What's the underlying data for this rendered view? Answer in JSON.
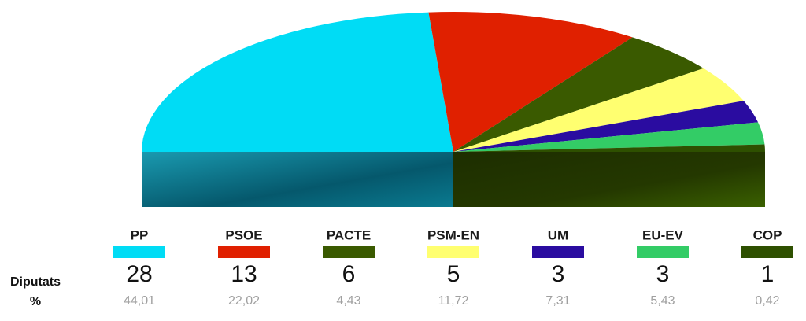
{
  "chart_data": {
    "type": "half-pie",
    "categories": [
      "PP",
      "PSOE",
      "PACTE",
      "PSM-EN",
      "UM",
      "EU-EV",
      "COP"
    ],
    "colors": [
      "#00dcf5",
      "#e02000",
      "#3a5a00",
      "#ffff70",
      "#2a0ca0",
      "#33cc66",
      "#2e5000"
    ],
    "series": [
      {
        "name": "Diputats",
        "values": [
          28,
          13,
          6,
          5,
          3,
          3,
          1
        ]
      },
      {
        "name": "%",
        "values": [
          44.01,
          22.02,
          4.43,
          11.72,
          7.31,
          5.43,
          0.42
        ],
        "value_labels": [
          "44,01",
          "22,02",
          "4,43",
          "11,72",
          "7,31",
          "5,43",
          "0,42"
        ]
      }
    ]
  }
}
